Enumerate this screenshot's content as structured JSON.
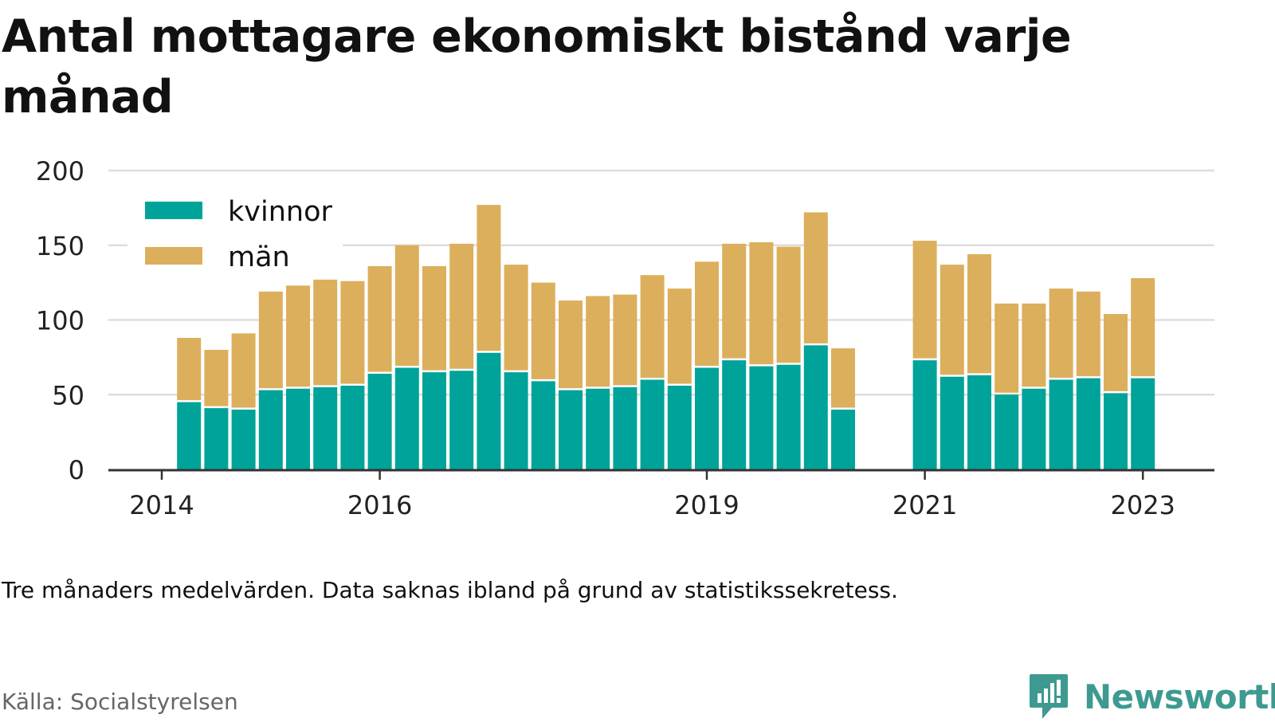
{
  "title": "Antal mottagare ekonomiskt bistånd varje månad",
  "note": "Tre månaders medelvärden. Data saknas ibland på grund av statistikssekretess.",
  "source": "Källa: Socialstyrelsen",
  "brand": "Newsworthy",
  "colors": {
    "kvinnor": "#00a399",
    "man": "#dcaf5c",
    "grid": "#dddddd",
    "axis": "#333333"
  },
  "chart_data": {
    "type": "bar",
    "stacked": true,
    "ylim": [
      0,
      200
    ],
    "yticks": [
      0,
      50,
      100,
      150,
      200
    ],
    "xticks": [
      {
        "label": "2014",
        "pos": 0.0
      },
      {
        "label": "2016",
        "pos": 8.0
      },
      {
        "label": "2019",
        "pos": 20.0
      },
      {
        "label": "2021",
        "pos": 28.0
      },
      {
        "label": "2023",
        "pos": 36.0
      }
    ],
    "legend": {
      "position": "top-left",
      "entries": [
        "kvinnor",
        "män"
      ]
    },
    "grid": true,
    "positions": [
      1,
      2,
      3,
      4,
      5,
      6,
      7,
      8,
      9,
      10,
      11,
      12,
      13,
      14,
      15,
      16,
      17,
      18,
      19,
      20,
      21,
      22,
      23,
      24,
      25,
      28,
      29,
      30,
      31,
      32,
      33,
      34,
      35,
      36
    ],
    "series": [
      {
        "name": "kvinnor",
        "values": [
          45,
          41,
          40,
          53,
          54,
          55,
          56,
          64,
          68,
          65,
          66,
          78,
          65,
          59,
          53,
          54,
          55,
          60,
          56,
          68,
          73,
          69,
          70,
          83,
          40,
          73,
          62,
          63,
          50,
          54,
          60,
          61,
          51,
          61
        ]
      },
      {
        "name": "män",
        "values": [
          43,
          39,
          51,
          66,
          69,
          72,
          70,
          72,
          82,
          71,
          85,
          99,
          72,
          66,
          60,
          62,
          62,
          70,
          65,
          71,
          78,
          83,
          79,
          89,
          41,
          80,
          75,
          81,
          61,
          57,
          61,
          58,
          53,
          67
        ]
      }
    ]
  }
}
